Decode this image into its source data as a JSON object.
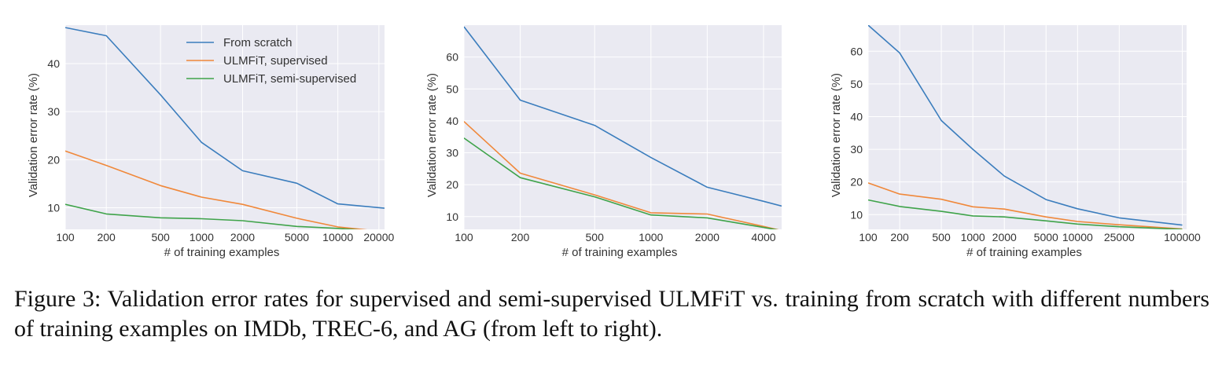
{
  "colors": {
    "background": "#eaeaf2",
    "grid": "#ffffff",
    "text": "#333333",
    "From scratch": "#3b7dbd",
    "ULMFiT, supervised": "#f0883a",
    "ULMFiT, semi-supervised": "#3fa34a"
  },
  "caption": "Figure 3: Validation error rates for supervised and semi-supervised ULMFiT vs. training from scratch with different numbers of training examples on IMDb, TREC-6, and AG (from left to right).",
  "chart_data": [
    {
      "type": "line",
      "xscale": "log",
      "xlim": [
        100,
        22000
      ],
      "ylim": [
        5.5,
        48
      ],
      "grid": true,
      "legend": "top-center",
      "xlabel": "# of training examples",
      "ylabel": "Validation error rate (%)",
      "xticks": [
        100,
        200,
        500,
        1000,
        2000,
        5000,
        10000,
        20000
      ],
      "xticklabels": [
        "100",
        "200",
        "500",
        "1000",
        "2000",
        "5000",
        "10000",
        "20000"
      ],
      "yticks": [
        10,
        20,
        30,
        40
      ],
      "yticklabels": [
        "10",
        "20",
        "30",
        "40"
      ],
      "series": [
        {
          "name": "From scratch",
          "x": [
            100,
            200,
            500,
            1000,
            2000,
            5000,
            10000,
            22000
          ],
          "y": [
            47.5,
            45.8,
            33.5,
            23.6,
            17.7,
            15.1,
            10.8,
            9.9
          ]
        },
        {
          "name": "ULMFiT, supervised",
          "x": [
            100,
            200,
            500,
            1000,
            2000,
            5000,
            10000,
            22000
          ],
          "y": [
            21.8,
            18.8,
            14.6,
            12.2,
            10.7,
            7.8,
            6.0,
            5.0
          ]
        },
        {
          "name": "ULMFiT, semi-supervised",
          "x": [
            100,
            200,
            500,
            1000,
            2000,
            5000,
            10000,
            22000
          ],
          "y": [
            10.7,
            8.7,
            7.9,
            7.7,
            7.3,
            6.1,
            5.7,
            5.0
          ]
        }
      ]
    },
    {
      "type": "line",
      "xscale": "log",
      "xlim": [
        100,
        5000
      ],
      "ylim": [
        6,
        70
      ],
      "grid": true,
      "xlabel": "# of training examples",
      "ylabel": "Validation error rate (%)",
      "xticks": [
        100,
        200,
        500,
        1000,
        2000,
        4000
      ],
      "xticklabels": [
        "100",
        "200",
        "500",
        "1000",
        "2000",
        "4000"
      ],
      "yticks": [
        10,
        20,
        30,
        40,
        50,
        60
      ],
      "yticklabels": [
        "10",
        "20",
        "30",
        "40",
        "50",
        "60"
      ],
      "series": [
        {
          "name": "From scratch",
          "x": [
            100,
            200,
            500,
            1000,
            2000,
            4000,
            5000
          ],
          "y": [
            69.5,
            46.5,
            38.6,
            28.5,
            19.2,
            14.8,
            13.3
          ]
        },
        {
          "name": "ULMFiT, supervised",
          "x": [
            100,
            200,
            500,
            1000,
            2000,
            4000,
            5000
          ],
          "y": [
            39.8,
            23.6,
            16.8,
            11.2,
            10.8,
            6.9,
            5.6
          ]
        },
        {
          "name": "ULMFiT, semi-supervised",
          "x": [
            100,
            200,
            500,
            1000,
            2000,
            4000,
            5000
          ],
          "y": [
            34.6,
            22.2,
            16.2,
            10.5,
            9.6,
            6.6,
            5.6
          ]
        }
      ]
    },
    {
      "type": "line",
      "xscale": "log",
      "xlim": [
        100,
        110000
      ],
      "ylim": [
        5.5,
        68
      ],
      "grid": true,
      "xlabel": "# of training examples",
      "ylabel": "Validation error rate (%)",
      "xticks": [
        100,
        200,
        500,
        1000,
        2000,
        5000,
        10000,
        25000,
        100000
      ],
      "xticklabels": [
        "100",
        "200",
        "500",
        "1000",
        "2000",
        "5000",
        "10000",
        "25000",
        "100000"
      ],
      "yticks": [
        10,
        20,
        30,
        40,
        50,
        60
      ],
      "yticklabels": [
        "10",
        "20",
        "30",
        "40",
        "50",
        "60"
      ],
      "series": [
        {
          "name": "From scratch",
          "x": [
            100,
            200,
            500,
            1000,
            2000,
            5000,
            10000,
            25000,
            100000
          ],
          "y": [
            68.0,
            59.5,
            38.8,
            30.0,
            21.8,
            14.6,
            11.8,
            9.0,
            6.8
          ]
        },
        {
          "name": "ULMFiT, supervised",
          "x": [
            100,
            200,
            500,
            1000,
            2000,
            5000,
            10000,
            25000,
            100000
          ],
          "y": [
            19.7,
            16.3,
            14.7,
            12.4,
            11.7,
            9.3,
            7.9,
            6.9,
            5.6
          ]
        },
        {
          "name": "ULMFiT, semi-supervised",
          "x": [
            100,
            200,
            500,
            1000,
            2000,
            5000,
            10000,
            25000,
            100000
          ],
          "y": [
            14.5,
            12.5,
            11.0,
            9.6,
            9.3,
            8.1,
            7.1,
            6.3,
            5.5
          ]
        }
      ]
    }
  ]
}
